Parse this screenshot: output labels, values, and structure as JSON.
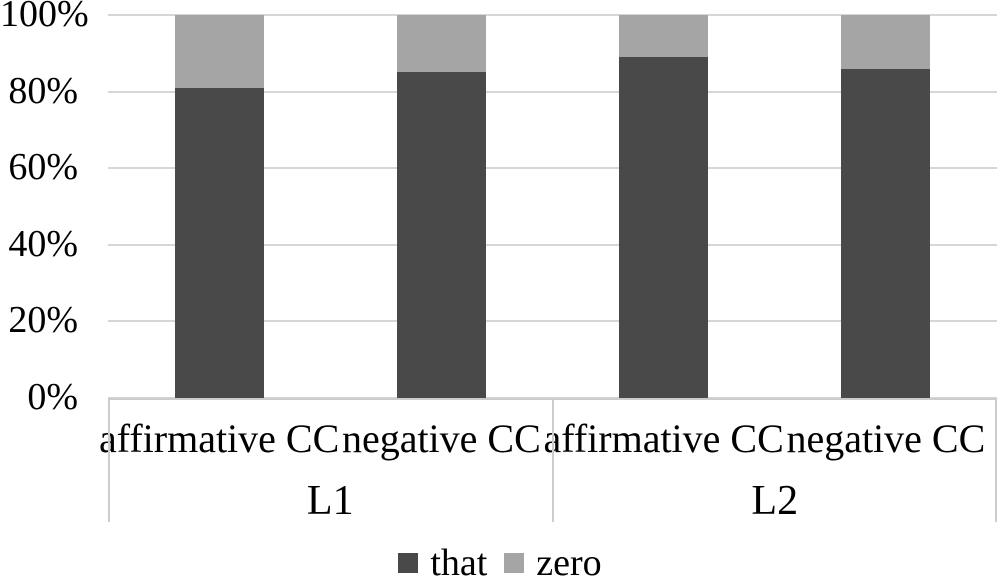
{
  "chart_data": {
    "type": "bar",
    "subtype": "stacked-100-percent-column",
    "title": "",
    "xlabel": "",
    "ylabel": "",
    "ylim": [
      0,
      100
    ],
    "grid": "horizontal",
    "legend_position": "bottom",
    "background": "#ffffff",
    "gridline_color": "#d6d6d6",
    "axis_line_color": "#cccccc",
    "text_color": "#000000",
    "y_ticks": [
      {
        "value": 0,
        "label": "0%"
      },
      {
        "value": 20,
        "label": "20%"
      },
      {
        "value": 40,
        "label": "40%"
      },
      {
        "value": 60,
        "label": "60%"
      },
      {
        "value": 80,
        "label": "80%"
      },
      {
        "value": 100,
        "label": "100%"
      }
    ],
    "categories": [
      "affirmative CC",
      "negative CC",
      "affirmative CC",
      "negative CC"
    ],
    "groups": [
      {
        "label": "L1",
        "categories": [
          "affirmative CC",
          "negative CC"
        ]
      },
      {
        "label": "L2",
        "categories": [
          "affirmative CC",
          "negative CC"
        ]
      }
    ],
    "series": [
      {
        "name": "that",
        "color": "#494949",
        "values": [
          81,
          85,
          89,
          86
        ]
      },
      {
        "name": "zero",
        "color": "#a5a5a5",
        "values": [
          19,
          15,
          11,
          14
        ]
      }
    ]
  }
}
